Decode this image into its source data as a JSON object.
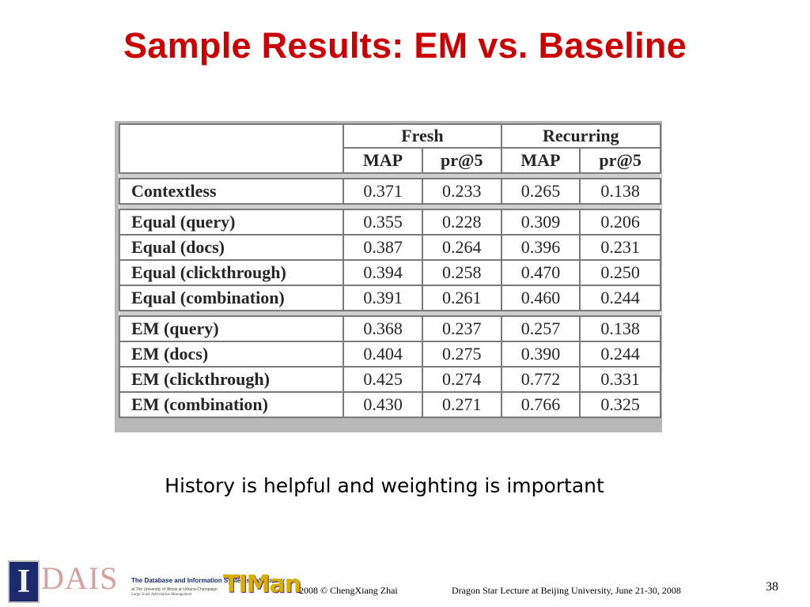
{
  "slide": {
    "title": "Sample Results: EM vs. Baseline",
    "caption": "History is helpful and weighting is important",
    "title_color": "#cc0000"
  },
  "table": {
    "group_headers": [
      "Fresh",
      "Recurring"
    ],
    "metric_headers": [
      "MAP",
      "pr@5",
      "MAP",
      "pr@5"
    ],
    "row_groups": [
      [
        {
          "label": "Contextless",
          "values": [
            "0.371",
            "0.233",
            "0.265",
            "0.138"
          ]
        }
      ],
      [
        {
          "label": "Equal (query)",
          "values": [
            "0.355",
            "0.228",
            "0.309",
            "0.206"
          ]
        },
        {
          "label": "Equal (docs)",
          "values": [
            "0.387",
            "0.264",
            "0.396",
            "0.231"
          ]
        },
        {
          "label": "Equal (clickthrough)",
          "values": [
            "0.394",
            "0.258",
            "0.470",
            "0.250"
          ]
        },
        {
          "label": "Equal (combination)",
          "values": [
            "0.391",
            "0.261",
            "0.460",
            "0.244"
          ]
        }
      ],
      [
        {
          "label": "EM (query)",
          "values": [
            "0.368",
            "0.237",
            "0.257",
            "0.138"
          ]
        },
        {
          "label": "EM (docs)",
          "values": [
            "0.404",
            "0.275",
            "0.390",
            "0.244"
          ]
        },
        {
          "label": "EM (clickthrough)",
          "values": [
            "0.425",
            "0.274",
            "0.772",
            "0.331"
          ]
        },
        {
          "label": "EM (combination)",
          "values": [
            "0.430",
            "0.271",
            "0.766",
            "0.325"
          ]
        }
      ]
    ]
  },
  "footer": {
    "logo_i": "I",
    "logo_dais": "DAIS",
    "logo_lab": "The Database and Information Systems Laboratory",
    "logo_sub1": "at The University of Illinois at Urbana-Champaign",
    "logo_sub2": "Large Scale Information Management",
    "logo_timan": "TIMan",
    "copyright": "2008  © ChengXiang Zhai",
    "lecture": "Dragon Star Lecture at Beijing University, June 21-30, 2008",
    "page_number": "38"
  }
}
